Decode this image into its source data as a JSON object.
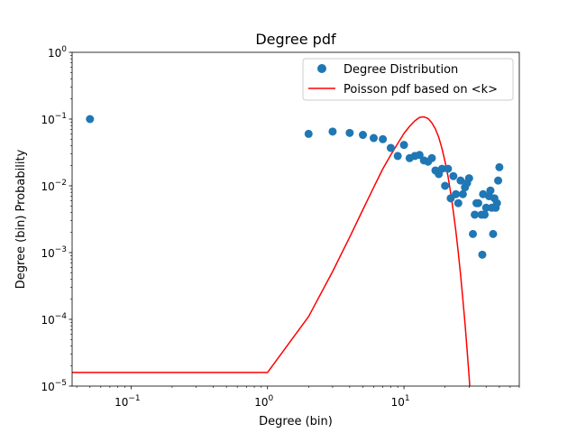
{
  "chart_data": {
    "type": "scatter",
    "title": "Degree pdf",
    "xlabel": "Degree (bin)",
    "ylabel": "Degree (bin) Probability",
    "xscale": "log",
    "yscale": "log",
    "xlim": [
      0.037,
      70
    ],
    "ylim": [
      1e-05,
      1
    ],
    "x_ticks": [
      {
        "value": 0.1,
        "base": "10",
        "exp": "−1"
      },
      {
        "value": 1,
        "base": "10",
        "exp": "0"
      },
      {
        "value": 10,
        "base": "10",
        "exp": "1"
      }
    ],
    "y_ticks": [
      {
        "value": 1e-05,
        "base": "10",
        "exp": "−5"
      },
      {
        "value": 0.0001,
        "base": "10",
        "exp": "−4"
      },
      {
        "value": 0.001,
        "base": "10",
        "exp": "−3"
      },
      {
        "value": 0.01,
        "base": "10",
        "exp": "−2"
      },
      {
        "value": 0.1,
        "base": "10",
        "exp": "−1"
      },
      {
        "value": 1,
        "base": "10",
        "exp": "0"
      }
    ],
    "legend_position": "top-right",
    "series": [
      {
        "name": "Degree Distribution",
        "kind": "scatter",
        "color": "#1f77b4",
        "points": [
          [
            0.05,
            0.1
          ],
          [
            2,
            0.06
          ],
          [
            3,
            0.065
          ],
          [
            4,
            0.062
          ],
          [
            5,
            0.058
          ],
          [
            6,
            0.052
          ],
          [
            7,
            0.05
          ],
          [
            8,
            0.037
          ],
          [
            9,
            0.028
          ],
          [
            10,
            0.041
          ],
          [
            11,
            0.026
          ],
          [
            12,
            0.028
          ],
          [
            13,
            0.029
          ],
          [
            14,
            0.024
          ],
          [
            15,
            0.023
          ],
          [
            16,
            0.026
          ],
          [
            17,
            0.017
          ],
          [
            18,
            0.015
          ],
          [
            19,
            0.018
          ],
          [
            20,
            0.01
          ],
          [
            21,
            0.018
          ],
          [
            22,
            0.0065
          ],
          [
            23,
            0.014
          ],
          [
            24,
            0.0075
          ],
          [
            25,
            0.0055
          ],
          [
            26,
            0.012
          ],
          [
            27,
            0.0075
          ],
          [
            28,
            0.0095
          ],
          [
            29,
            0.011
          ],
          [
            30,
            0.013
          ],
          [
            32,
            0.0019
          ],
          [
            33,
            0.0037
          ],
          [
            34,
            0.0055
          ],
          [
            35,
            0.0055
          ],
          [
            37,
            0.0037
          ],
          [
            37.5,
            0.00093
          ],
          [
            38,
            0.0075
          ],
          [
            39,
            0.0037
          ],
          [
            40,
            0.0047
          ],
          [
            42,
            0.007
          ],
          [
            43,
            0.0085
          ],
          [
            44,
            0.0047
          ],
          [
            45,
            0.0019
          ],
          [
            46,
            0.0065
          ],
          [
            47,
            0.0047
          ],
          [
            48,
            0.0055
          ],
          [
            49,
            0.012
          ],
          [
            50,
            0.019
          ]
        ]
      },
      {
        "name": "Poisson pdf based on <k>",
        "kind": "line",
        "color": "#ff0000",
        "points": [
          [
            0.03,
            1.6e-05
          ],
          [
            1,
            1.6e-05
          ],
          [
            2,
            0.00011
          ],
          [
            3,
            0.00052
          ],
          [
            4,
            0.0017
          ],
          [
            5,
            0.0044
          ],
          [
            6,
            0.0095
          ],
          [
            7,
            0.018
          ],
          [
            8,
            0.029
          ],
          [
            9,
            0.043
          ],
          [
            10,
            0.061
          ],
          [
            11,
            0.078
          ],
          [
            12,
            0.094
          ],
          [
            13,
            0.106
          ],
          [
            14,
            0.108
          ],
          [
            15,
            0.102
          ],
          [
            16,
            0.088
          ],
          [
            17,
            0.071
          ],
          [
            18,
            0.053
          ],
          [
            19,
            0.036
          ],
          [
            20,
            0.023
          ],
          [
            21,
            0.014
          ],
          [
            22,
            0.0078
          ],
          [
            23,
            0.0041
          ],
          [
            24,
            0.0021
          ],
          [
            25,
            0.001
          ],
          [
            26,
            0.00046
          ],
          [
            27,
            0.0002
          ],
          [
            28,
            8.7e-05
          ],
          [
            29,
            3.5e-05
          ],
          [
            30,
            1.4e-05
          ],
          [
            31,
            5.2e-06
          ]
        ]
      }
    ]
  }
}
